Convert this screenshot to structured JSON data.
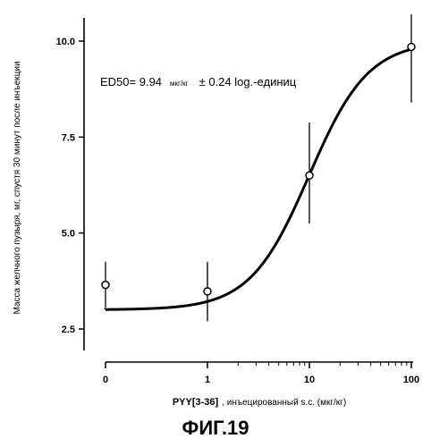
{
  "chart_data": {
    "type": "scatter",
    "xscale": "log",
    "ylabel": "Масса желчного пузыря, мг, спустя 30 минут после инъекции",
    "xlabel_bold": "PYY[3-36]",
    "xlabel_rest": ", инъецированный s.c. (мкг/кг)",
    "x_tick_labels": [
      "0",
      "1",
      "10",
      "100"
    ],
    "y_tick_labels": [
      "2.5",
      "5.0",
      "7.5",
      "10.0"
    ],
    "y_ticks": [
      2.5,
      5.0,
      7.5,
      10.0
    ],
    "ylim": [
      1.6,
      10.3
    ],
    "grid": false,
    "points": [
      {
        "x": 0,
        "y": 3.65,
        "err_low": 3.05,
        "err_high": 4.25
      },
      {
        "x": 1,
        "y": 3.48,
        "err_low": 2.7,
        "err_high": 4.25
      },
      {
        "x": 10,
        "y": 6.5,
        "err_low": 5.25,
        "err_high": 7.88
      },
      {
        "x": 100,
        "y": 9.85,
        "err_low": 8.4,
        "err_high": 10.7
      }
    ],
    "fit_curve": {
      "bottom": 3.0,
      "top": 10.0,
      "ec50": 9.94,
      "hill": 1.5
    },
    "annotation": {
      "prefix": "ED50= 9.94",
      "unit": "мкг/кг",
      "suffix": "± 0.24 log.-единиц"
    }
  },
  "caption": "ФИГ.19"
}
